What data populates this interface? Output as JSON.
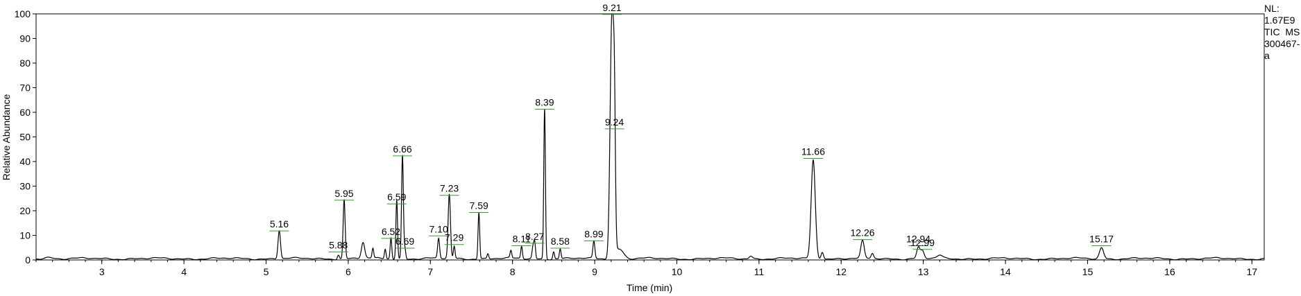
{
  "chart_data": {
    "type": "line",
    "xlabel": "Time (min)",
    "ylabel": "Relative Abundance",
    "xlim": [
      2.2,
      17.15
    ],
    "ylim": [
      0,
      100
    ],
    "xticks": [
      3,
      4,
      5,
      6,
      7,
      8,
      9,
      10,
      11,
      12,
      13,
      14,
      15,
      16,
      17
    ],
    "yticks": [
      0,
      10,
      20,
      30,
      40,
      50,
      60,
      70,
      80,
      90,
      100
    ],
    "info": [
      "NL:",
      "1.67E9",
      "TIC  MS",
      "300467-",
      "a"
    ],
    "line_color": "#000000",
    "marker_color": "#2e9d2e",
    "peaks": [
      {
        "t": 5.16,
        "h": 11.5,
        "w": 0.015,
        "label": "5.16",
        "lh": 11.5
      },
      {
        "t": 5.88,
        "h": 1.8,
        "w": 0.012,
        "label": "5.88",
        "lh": 3.0
      },
      {
        "t": 5.95,
        "h": 24,
        "w": 0.012,
        "label": "5.95",
        "lh": 24
      },
      {
        "t": 6.18,
        "h": 6.5,
        "w": 0.02,
        "label": "",
        "lh": 0
      },
      {
        "t": 6.3,
        "h": 4,
        "w": 0.01,
        "label": "",
        "lh": 0
      },
      {
        "t": 6.45,
        "h": 4,
        "w": 0.01,
        "label": "",
        "lh": 0
      },
      {
        "t": 6.52,
        "h": 8.5,
        "w": 0.01,
        "label": "6.52",
        "lh": 8.5
      },
      {
        "t": 6.59,
        "h": 24,
        "w": 0.01,
        "label": "6.59",
        "lh": 22.5
      },
      {
        "t": 6.66,
        "h": 42,
        "w": 0.011,
        "label": "6.66",
        "lh": 42
      },
      {
        "t": 6.69,
        "h": 4,
        "w": 0.01,
        "label": "6.69",
        "lh": 4.5
      },
      {
        "t": 7.1,
        "h": 8,
        "w": 0.012,
        "label": "7.10",
        "lh": 9.5
      },
      {
        "t": 7.23,
        "h": 26,
        "w": 0.014,
        "label": "7.23",
        "lh": 26
      },
      {
        "t": 7.29,
        "h": 5,
        "w": 0.01,
        "label": "7.29",
        "lh": 6
      },
      {
        "t": 7.59,
        "h": 19,
        "w": 0.01,
        "label": "7.59",
        "lh": 19
      },
      {
        "t": 7.7,
        "h": 2,
        "w": 0.01,
        "label": "",
        "lh": 0
      },
      {
        "t": 7.98,
        "h": 3,
        "w": 0.01,
        "label": "",
        "lh": 0
      },
      {
        "t": 8.11,
        "h": 5,
        "w": 0.01,
        "label": "8.11",
        "lh": 5.5
      },
      {
        "t": 8.25,
        "h": 5,
        "w": 0.012,
        "label": "",
        "lh": 0
      },
      {
        "t": 8.27,
        "h": 6,
        "w": 0.01,
        "label": "8.27",
        "lh": 6.5
      },
      {
        "t": 8.39,
        "h": 61,
        "w": 0.01,
        "label": "8.39",
        "lh": 61
      },
      {
        "t": 8.5,
        "h": 3,
        "w": 0.01,
        "label": "",
        "lh": 0
      },
      {
        "t": 8.58,
        "h": 4,
        "w": 0.01,
        "label": "8.58",
        "lh": 4.5
      },
      {
        "t": 8.99,
        "h": 7,
        "w": 0.012,
        "label": "8.99",
        "lh": 7.5
      },
      {
        "t": 9.21,
        "h": 99,
        "w": 0.022,
        "label": "9.21",
        "lh": 99.5
      },
      {
        "t": 9.24,
        "h": 41,
        "w": 0.012,
        "label": "9.24",
        "lh": 53
      },
      {
        "t": 9.3,
        "h": 4,
        "w": 0.05,
        "label": "",
        "lh": 0
      },
      {
        "t": 10.9,
        "h": 1.2,
        "w": 0.02,
        "label": "",
        "lh": 0
      },
      {
        "t": 11.66,
        "h": 40,
        "w": 0.025,
        "label": "11.66",
        "lh": 41
      },
      {
        "t": 11.77,
        "h": 3,
        "w": 0.015,
        "label": "",
        "lh": 0
      },
      {
        "t": 12.26,
        "h": 7,
        "w": 0.02,
        "label": "12.26",
        "lh": 8
      },
      {
        "t": 12.38,
        "h": 2,
        "w": 0.015,
        "label": "",
        "lh": 0
      },
      {
        "t": 12.94,
        "h": 4.5,
        "w": 0.02,
        "label": "12.94",
        "lh": 5.5
      },
      {
        "t": 12.99,
        "h": 3,
        "w": 0.02,
        "label": "12.99",
        "lh": 4
      },
      {
        "t": 13.2,
        "h": 1.2,
        "w": 0.03,
        "label": "",
        "lh": 0
      },
      {
        "t": 15.17,
        "h": 4.5,
        "w": 0.025,
        "label": "15.17",
        "lh": 5.5
      }
    ]
  }
}
